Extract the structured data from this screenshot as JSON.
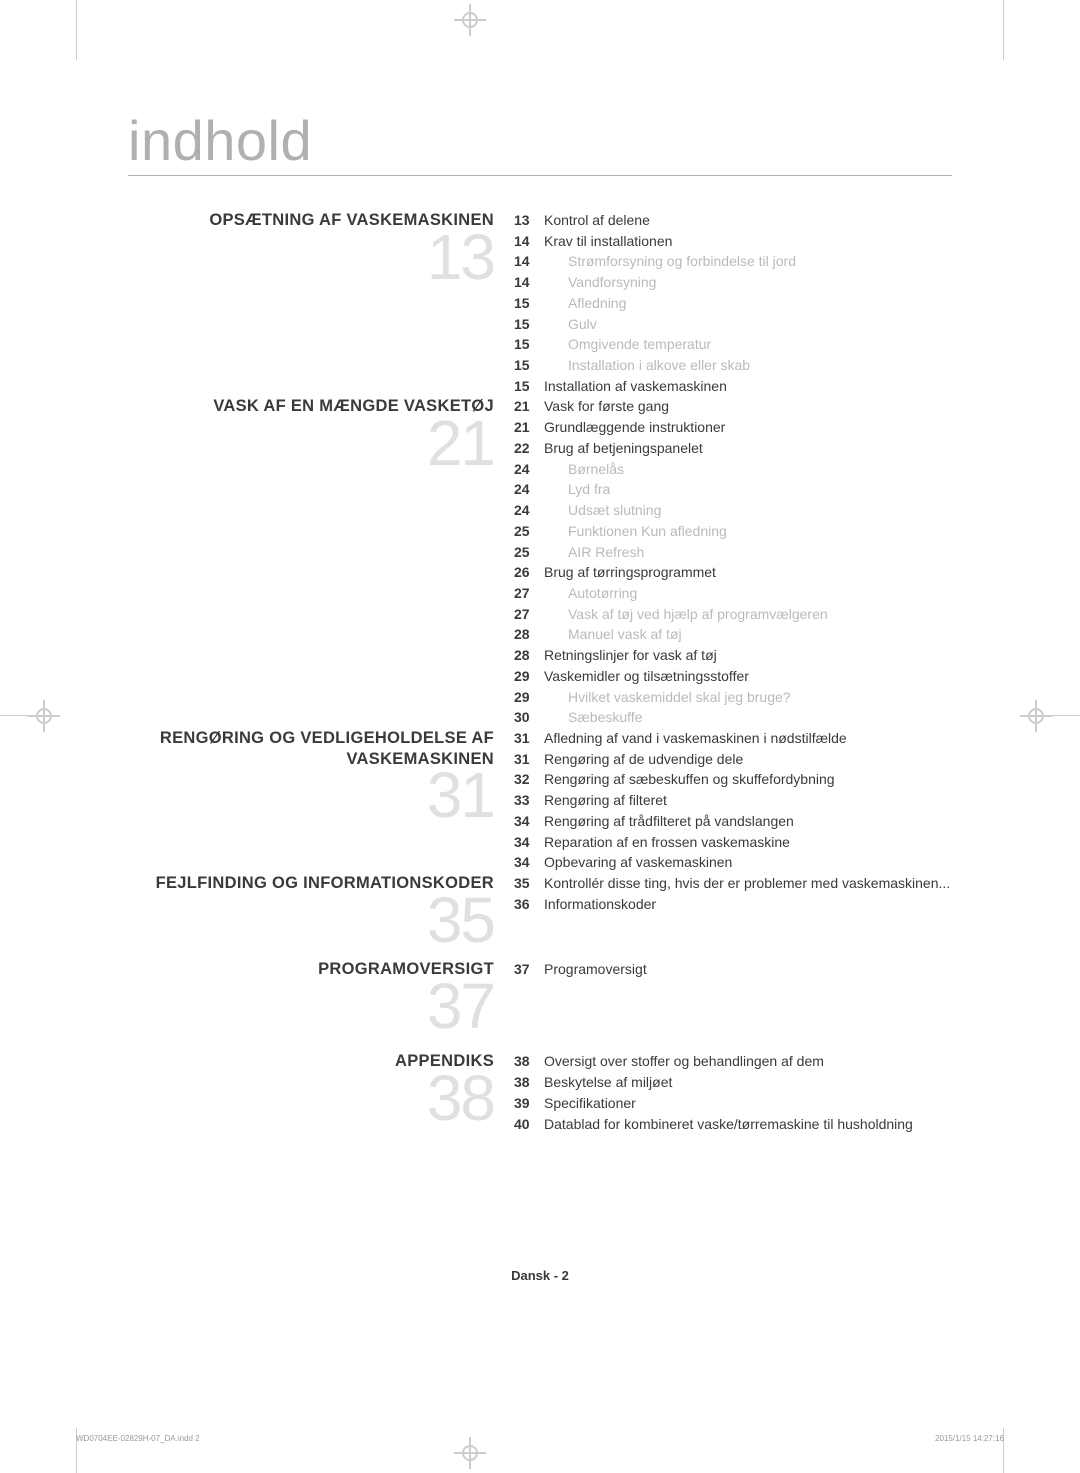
{
  "page": {
    "title": "indhold",
    "footer": "Dansk - 2",
    "imprint_file": "WD0704EE-02829H-07_DA.indd   2",
    "imprint_date": "2015/1/15   14:27:16"
  },
  "colors": {
    "text": "#3a3a3a",
    "muted": "#bababa",
    "title": "#b0b0b0",
    "bignum": "#e0e0e0",
    "crop": "#cccccc",
    "bg": "#ffffff"
  },
  "sections": [
    {
      "title": "OPSÆTNING AF VASKEMASKINEN",
      "bignum": "13",
      "entries": [
        {
          "pg": "13",
          "label": "Kontrol af delene",
          "sub": false
        },
        {
          "pg": "14",
          "label": "Krav til installationen",
          "sub": false
        },
        {
          "pg": "14",
          "label": "Strømforsyning og forbindelse til jord",
          "sub": true
        },
        {
          "pg": "14",
          "label": "Vandforsyning",
          "sub": true
        },
        {
          "pg": "15",
          "label": "Afledning",
          "sub": true
        },
        {
          "pg": "15",
          "label": "Gulv",
          "sub": true
        },
        {
          "pg": "15",
          "label": "Omgivende temperatur",
          "sub": true
        },
        {
          "pg": "15",
          "label": "Installation i alkove eller skab",
          "sub": true
        },
        {
          "pg": "15",
          "label": "Installation af vaskemaskinen",
          "sub": false
        }
      ]
    },
    {
      "title": "VASK AF EN MÆNGDE VASKETØJ",
      "bignum": "21",
      "entries": [
        {
          "pg": "21",
          "label": "Vask for første gang",
          "sub": false
        },
        {
          "pg": "21",
          "label": "Grundlæggende instruktioner",
          "sub": false
        },
        {
          "pg": "22",
          "label": "Brug af betjeningspanelet",
          "sub": false
        },
        {
          "pg": "24",
          "label": "Børnelås",
          "sub": true
        },
        {
          "pg": "24",
          "label": "Lyd fra",
          "sub": true
        },
        {
          "pg": "24",
          "label": "Udsæt slutning",
          "sub": true
        },
        {
          "pg": "25",
          "label": "Funktionen Kun afledning",
          "sub": true
        },
        {
          "pg": "25",
          "label": "AIR Refresh",
          "sub": true
        },
        {
          "pg": "26",
          "label": "Brug af tørringsprogrammet",
          "sub": false
        },
        {
          "pg": "27",
          "label": "Autotørring",
          "sub": true
        },
        {
          "pg": "27",
          "label": "Vask af tøj ved hjælp af programvælgeren",
          "sub": true
        },
        {
          "pg": "28",
          "label": "Manuel vask af tøj",
          "sub": true
        },
        {
          "pg": "28",
          "label": "Retningslinjer for vask af tøj",
          "sub": false
        },
        {
          "pg": "29",
          "label": "Vaskemidler og tilsætningsstoffer",
          "sub": false
        },
        {
          "pg": "29",
          "label": "Hvilket vaskemiddel skal jeg bruge?",
          "sub": true
        },
        {
          "pg": "30",
          "label": "Sæbeskuffe",
          "sub": true
        }
      ]
    },
    {
      "title": "RENGØRING OG VEDLIGEHOLDELSE AF VASKEMASKINEN",
      "bignum": "31",
      "entries": [
        {
          "pg": "31",
          "label": "Afledning af vand i vaskemaskinen i nødstilfælde",
          "sub": false
        },
        {
          "pg": "31",
          "label": "Rengøring af de udvendige dele",
          "sub": false
        },
        {
          "pg": "32",
          "label": "Rengøring af sæbeskuffen og skuffefordybning",
          "sub": false
        },
        {
          "pg": "33",
          "label": "Rengøring af filteret",
          "sub": false
        },
        {
          "pg": "34",
          "label": "Rengøring af trådfilteret på vandslangen",
          "sub": false
        },
        {
          "pg": "34",
          "label": "Reparation af en frossen vaskemaskine",
          "sub": false
        },
        {
          "pg": "34",
          "label": "Opbevaring af vaskemaskinen",
          "sub": false
        }
      ]
    },
    {
      "title": "FEJLFINDING OG INFORMATIONSKODER",
      "bignum": "35",
      "entries": [
        {
          "pg": "35",
          "label": "Kontrollér disse ting, hvis der er problemer med vaskemaskinen...",
          "sub": false
        },
        {
          "pg": "36",
          "label": "Informationskoder",
          "sub": false
        }
      ]
    },
    {
      "title": "PROGRAMOVERSIGT",
      "bignum": "37",
      "entries": [
        {
          "pg": "37",
          "label": "Programoversigt",
          "sub": false
        }
      ]
    },
    {
      "title": "APPENDIKS",
      "bignum": "38",
      "entries": [
        {
          "pg": "38",
          "label": "Oversigt over stoffer og behandlingen af dem",
          "sub": false
        },
        {
          "pg": "38",
          "label": "Beskytelse af miljøet",
          "sub": false
        },
        {
          "pg": "39",
          "label": "Specifikationer",
          "sub": false
        },
        {
          "pg": "40",
          "label": "Datablad for kombineret vaske/tørremaskine til husholdning",
          "sub": false
        }
      ]
    }
  ]
}
